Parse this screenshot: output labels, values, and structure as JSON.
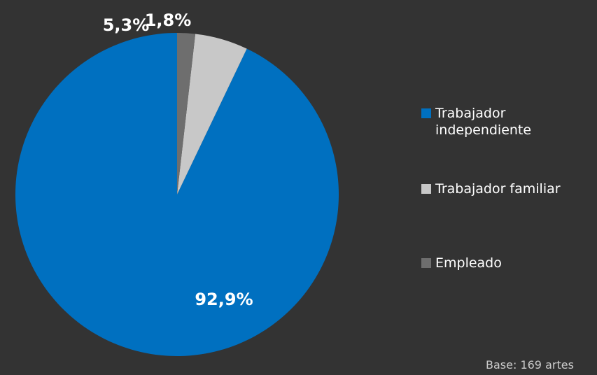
{
  "chart_data": {
    "type": "pie",
    "categories": [
      "Trabajador independiente",
      "Trabajador familiar",
      "Empleado"
    ],
    "values": [
      92.9,
      5.3,
      1.8
    ],
    "value_labels": [
      "92,9%",
      "5,3%",
      "1,8%"
    ],
    "colors": [
      "#0070c0",
      "#c8c8c8",
      "#6e6e6e"
    ],
    "legend_placement": "right",
    "title": ""
  },
  "legend": {
    "items": [
      {
        "label": "Trabajador independiente",
        "color": "#0070c0"
      },
      {
        "label": "Trabajador familiar",
        "color": "#c8c8c8"
      },
      {
        "label": "Empleado",
        "color": "#6e6e6e"
      }
    ]
  },
  "note": "Base: 169 artes"
}
